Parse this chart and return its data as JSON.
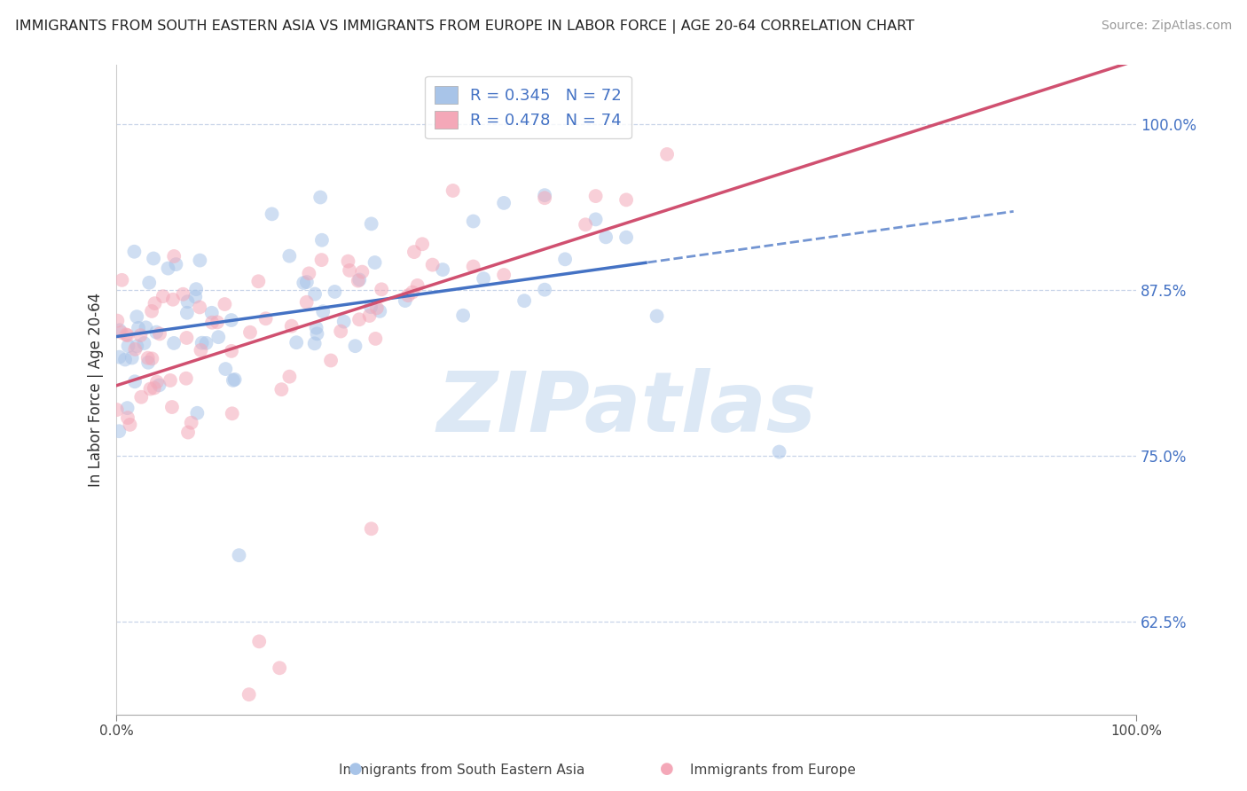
{
  "title": "IMMIGRANTS FROM SOUTH EASTERN ASIA VS IMMIGRANTS FROM EUROPE IN LABOR FORCE | AGE 20-64 CORRELATION CHART",
  "source": "Source: ZipAtlas.com",
  "ylabel": "In Labor Force | Age 20-64",
  "ytick_vals": [
    0.625,
    0.75,
    0.875,
    1.0
  ],
  "ytick_labels": [
    "62.5%",
    "75.0%",
    "87.5%",
    "100.0%"
  ],
  "xtick_vals": [
    0.0,
    1.0
  ],
  "xtick_labels": [
    "0.0%",
    "100.0%"
  ],
  "legend_entries": [
    {
      "label": "R = 0.345   N = 72",
      "color": "#a8c4e8"
    },
    {
      "label": "R = 0.478   N = 74",
      "color": "#f4a8b8"
    }
  ],
  "blue_color": "#a8c4e8",
  "pink_color": "#f4a8b8",
  "line_blue_color": "#4472c4",
  "line_pink_color": "#d05070",
  "text_color": "#4472c4",
  "watermark_color": "#dce8f5",
  "background_color": "#ffffff",
  "grid_color": "#c8d4e8",
  "title_color": "#222222",
  "bottom_label_blue": "Immigrants from South Eastern Asia",
  "bottom_label_pink": "Immigrants from Europe",
  "xlim": [
    0.0,
    1.0
  ],
  "ylim": [
    0.555,
    1.045
  ],
  "blue_line_solid_end": 0.52,
  "blue_line_dashed_end": 0.88,
  "pink_line_end": 1.0,
  "scatter_size": 130,
  "scatter_alpha": 0.55
}
